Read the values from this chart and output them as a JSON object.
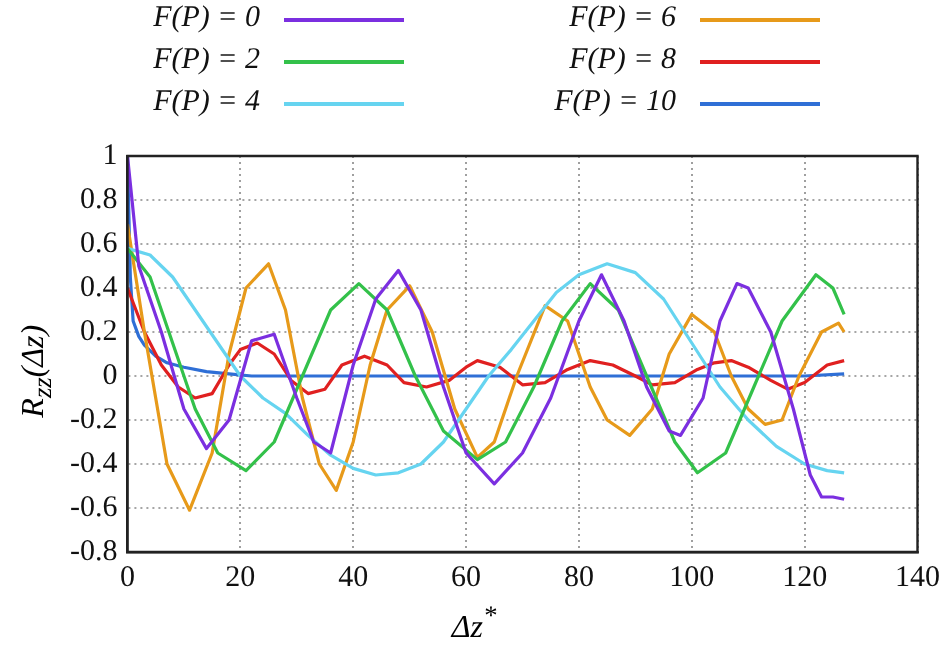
{
  "chart_data": {
    "type": "line",
    "xlabel": "Δz$^{*}$",
    "ylabel": "R$_{zz}$(Δz)",
    "xlim": [
      0,
      140
    ],
    "xticks": [
      0,
      20,
      40,
      60,
      80,
      100,
      120,
      140
    ],
    "ylim": [
      -0.8,
      1
    ],
    "yticks": [
      -0.8,
      -0.6,
      -0.4,
      -0.2,
      0,
      0.2,
      0.4,
      0.6,
      0.8,
      1
    ],
    "grid": true,
    "legend": "top",
    "marker": "none",
    "line_style": "solid",
    "series": [
      {
        "name": "F(P) = 0",
        "color": "#7b2fe0",
        "x": [
          0,
          2,
          6,
          10,
          14,
          18,
          22,
          26,
          30,
          33,
          36,
          40,
          44,
          48,
          52,
          56,
          60,
          65,
          70,
          75,
          80,
          84,
          88,
          92,
          96,
          98,
          102,
          105,
          108,
          110,
          114,
          118,
          121,
          123,
          125,
          127
        ],
        "values": [
          1,
          0.5,
          0.2,
          -0.15,
          -0.33,
          -0.2,
          0.16,
          0.19,
          -0.1,
          -0.3,
          -0.35,
          0.05,
          0.35,
          0.48,
          0.3,
          -0.05,
          -0.35,
          -0.49,
          -0.35,
          -0.1,
          0.25,
          0.46,
          0.25,
          -0.05,
          -0.25,
          -0.27,
          -0.1,
          0.25,
          0.42,
          0.4,
          0.2,
          -0.15,
          -0.45,
          -0.55,
          -0.55,
          -0.56
        ]
      },
      {
        "name": "F(P) = 2",
        "color": "#33c14a",
        "x": [
          0,
          4,
          8,
          12,
          16,
          21,
          26,
          31,
          36,
          41,
          46,
          51,
          56,
          62,
          67,
          72,
          77,
          82,
          87,
          92,
          97,
          101,
          106,
          111,
          116,
          122,
          125,
          127
        ],
        "values": [
          0.58,
          0.45,
          0.15,
          -0.15,
          -0.35,
          -0.43,
          -0.3,
          0,
          0.3,
          0.42,
          0.3,
          0,
          -0.25,
          -0.38,
          -0.3,
          -0.05,
          0.25,
          0.42,
          0.3,
          0,
          -0.3,
          -0.44,
          -0.35,
          -0.05,
          0.25,
          0.46,
          0.4,
          0.28
        ]
      },
      {
        "name": "F(P) = 4",
        "color": "#66d4f0",
        "x": [
          0,
          4,
          8,
          12,
          16,
          20,
          24,
          28,
          32,
          36,
          40,
          44,
          48,
          52,
          56,
          60,
          64,
          68,
          72,
          76,
          80,
          85,
          90,
          95,
          100,
          105,
          110,
          115,
          120,
          124,
          127
        ],
        "values": [
          0.58,
          0.55,
          0.45,
          0.3,
          0.15,
          0,
          -0.1,
          -0.17,
          -0.27,
          -0.36,
          -0.42,
          -0.45,
          -0.44,
          -0.4,
          -0.3,
          -0.15,
          0,
          0.12,
          0.25,
          0.38,
          0.46,
          0.51,
          0.47,
          0.35,
          0.15,
          -0.05,
          -0.2,
          -0.32,
          -0.4,
          -0.43,
          -0.44
        ]
      },
      {
        "name": "F(P) = 6",
        "color": "#e79a1a",
        "x": [
          0,
          3,
          7,
          11,
          15,
          18,
          21,
          25,
          28,
          31,
          34,
          37,
          40,
          43,
          46,
          50,
          54,
          58,
          62,
          65,
          69,
          74,
          78,
          82,
          85,
          89,
          93,
          96,
          100,
          104,
          107,
          110,
          113,
          116,
          119,
          123,
          126,
          127
        ],
        "values": [
          0.69,
          0.2,
          -0.4,
          -0.61,
          -0.35,
          0.1,
          0.4,
          0.51,
          0.3,
          -0.1,
          -0.4,
          -0.52,
          -0.3,
          0.05,
          0.3,
          0.41,
          0.2,
          -0.15,
          -0.37,
          -0.3,
          0,
          0.32,
          0.25,
          -0.05,
          -0.2,
          -0.27,
          -0.15,
          0.1,
          0.28,
          0.2,
          0,
          -0.15,
          -0.22,
          -0.2,
          0,
          0.2,
          0.24,
          0.2
        ]
      },
      {
        "name": "F(P) = 8",
        "color": "#e02020",
        "x": [
          0,
          3,
          6,
          9,
          12,
          15,
          18,
          20,
          23,
          26,
          29,
          32,
          35,
          38,
          42,
          46,
          49,
          53,
          57,
          60,
          62,
          66,
          70,
          74,
          78,
          82,
          86,
          90,
          93,
          97,
          101,
          104,
          107,
          110,
          114,
          117,
          120,
          124,
          127
        ],
        "values": [
          0.4,
          0.2,
          0.05,
          -0.05,
          -0.1,
          -0.08,
          0.05,
          0.12,
          0.15,
          0.1,
          -0.02,
          -0.08,
          -0.06,
          0.05,
          0.09,
          0.05,
          -0.03,
          -0.05,
          -0.02,
          0.04,
          0.07,
          0.04,
          -0.04,
          -0.03,
          0.03,
          0.07,
          0.05,
          0,
          -0.04,
          -0.03,
          0.03,
          0.06,
          0.07,
          0.04,
          -0.02,
          -0.06,
          -0.03,
          0.05,
          0.07
        ]
      },
      {
        "name": "F(P) = 10",
        "color": "#2f6fd6",
        "x": [
          0,
          0.5,
          1,
          2,
          3,
          5,
          7,
          10,
          14,
          18,
          22,
          30,
          40,
          50,
          60,
          70,
          80,
          90,
          100,
          110,
          120,
          127
        ],
        "values": [
          1,
          0.45,
          0.25,
          0.18,
          0.14,
          0.09,
          0.06,
          0.04,
          0.02,
          0.01,
          0,
          0,
          0,
          0,
          0,
          0,
          0,
          0,
          0,
          0,
          0,
          0.01
        ]
      }
    ]
  }
}
